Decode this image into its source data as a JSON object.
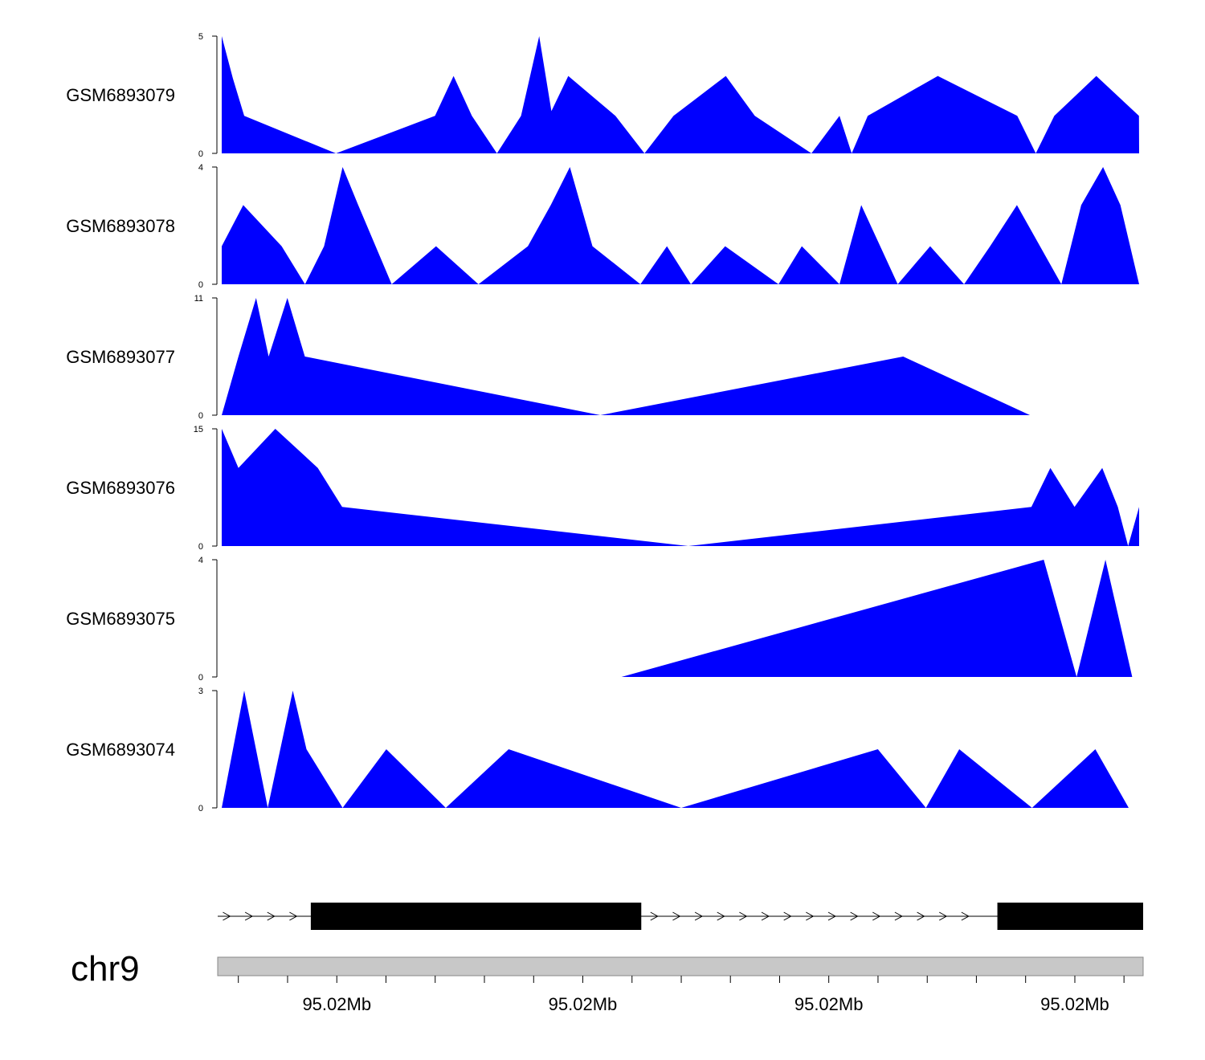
{
  "chart_data": {
    "type": "area",
    "title": "",
    "color": "#0000ff",
    "x_domain": [
      0,
      1
    ],
    "tracks": [
      {
        "name": "GSM6893079",
        "ylim": [
          0,
          5
        ],
        "yticks": [
          "0",
          "5"
        ],
        "x": [
          0,
          0.0122,
          0.0245,
          0.1245,
          0.2325,
          0.2527,
          0.2727,
          0.3,
          0.3263,
          0.3461,
          0.3594,
          0.3778,
          0.4292,
          0.4609,
          0.4925,
          0.5495,
          0.5811,
          0.6428,
          0.6734,
          0.6867,
          0.7042,
          0.7806,
          0.8672,
          0.8874,
          0.9075,
          0.9533,
          0.9998,
          1.0
        ],
        "y": [
          5,
          3.2,
          1.6,
          0,
          1.6,
          3.3,
          1.6,
          0,
          1.6,
          5,
          1.8,
          3.3,
          1.6,
          0,
          1.6,
          3.3,
          1.6,
          0,
          1.6,
          0,
          1.6,
          3.3,
          1.6,
          0,
          1.6,
          3.3,
          1.6,
          0
        ]
      },
      {
        "name": "GSM6893078",
        "ylim": [
          0,
          4
        ],
        "yticks": [
          "0",
          "4"
        ],
        "x": [
          0,
          0.0235,
          0.0653,
          0.0908,
          0.1116,
          0.1318,
          0.1488,
          0.1853,
          0.2336,
          0.2799,
          0.3337,
          0.3587,
          0.3795,
          0.4041,
          0.4564,
          0.4853,
          0.5115,
          0.5488,
          0.6069,
          0.6323,
          0.6734,
          0.6971,
          0.7369,
          0.7722,
          0.8092,
          0.8376,
          0.8668,
          0.9152,
          0.9369,
          0.9607,
          0.9796,
          1.0
        ],
        "y": [
          1.3,
          2.7,
          1.3,
          0,
          1.3,
          4,
          2.7,
          0,
          1.3,
          0,
          1.3,
          2.7,
          4,
          1.3,
          0,
          1.3,
          0,
          1.3,
          0,
          1.3,
          0,
          2.7,
          0,
          1.3,
          0,
          1.3,
          2.7,
          0,
          2.7,
          4,
          2.7,
          0
        ]
      },
      {
        "name": "GSM6893077",
        "ylim": [
          0,
          11
        ],
        "yticks": [
          "0",
          "11"
        ],
        "x": [
          0,
          0.0182,
          0.0375,
          0.0511,
          0.0715,
          0.0906,
          0.4127,
          0.7428,
          0.881
        ],
        "y": [
          0,
          5.5,
          11,
          5.5,
          11,
          5.5,
          0,
          5.5,
          0
        ]
      },
      {
        "name": "GSM6893076",
        "ylim": [
          0,
          15
        ],
        "yticks": [
          "0",
          "15"
        ],
        "x": [
          0,
          0.0182,
          0.0584,
          0.1047,
          0.1313,
          0.5086,
          0.8826,
          0.9032,
          0.9296,
          0.9598,
          0.9768,
          0.988,
          1.0
        ],
        "y": [
          15,
          10,
          15,
          10,
          5,
          0,
          5,
          10,
          5,
          10,
          5,
          0,
          5
        ]
      },
      {
        "name": "GSM6893075",
        "ylim": [
          0,
          4
        ],
        "yticks": [
          "0",
          "4"
        ],
        "x": [
          0.4357,
          0.8961,
          0.9319,
          0.9633,
          0.9925
        ],
        "y": [
          0,
          4,
          0,
          4,
          0
        ]
      },
      {
        "name": "GSM6893074",
        "ylim": [
          0,
          3
        ],
        "yticks": [
          "0",
          "3"
        ],
        "x": [
          0,
          0.0245,
          0.0502,
          0.0775,
          0.0924,
          0.1318,
          0.1794,
          0.2442,
          0.3128,
          0.5009,
          0.7152,
          0.7676,
          0.8039,
          0.8833,
          0.9523,
          0.9886
        ],
        "y": [
          0,
          3,
          0,
          3,
          1.5,
          0,
          1.5,
          0,
          1.5,
          0,
          1.5,
          0,
          1.5,
          0,
          1.5,
          0
        ]
      }
    ],
    "gene_model": {
      "exons": [
        [
          0.1006,
          0.4577
        ],
        [
          0.8425,
          1.0
        ]
      ],
      "intron_arrows": [
        0.0134,
        0.0374,
        0.0614,
        0.0854,
        0.4755,
        0.4995,
        0.5235,
        0.5475,
        0.5715,
        0.5955,
        0.6195,
        0.6435,
        0.6675,
        0.6915,
        0.7155,
        0.7395,
        0.7635,
        0.7875,
        0.8115
      ]
    },
    "axis": {
      "chromosome": "chr9",
      "xlabel": "",
      "major_ticks": [
        {
          "pos": 0.1287,
          "label": "95.02Mb"
        },
        {
          "pos": 0.3945,
          "label": "95.02Mb"
        },
        {
          "pos": 0.6603,
          "label": "95.02Mb"
        },
        {
          "pos": 0.9262,
          "label": "95.02Mb"
        }
      ],
      "minor_ticks": [
        0.0223,
        0.0755,
        0.1287,
        0.1818,
        0.235,
        0.2882,
        0.3414,
        0.3945,
        0.4477,
        0.5009,
        0.554,
        0.6072,
        0.6603,
        0.7135,
        0.7667,
        0.8198,
        0.873,
        0.9262,
        0.9793
      ]
    }
  }
}
